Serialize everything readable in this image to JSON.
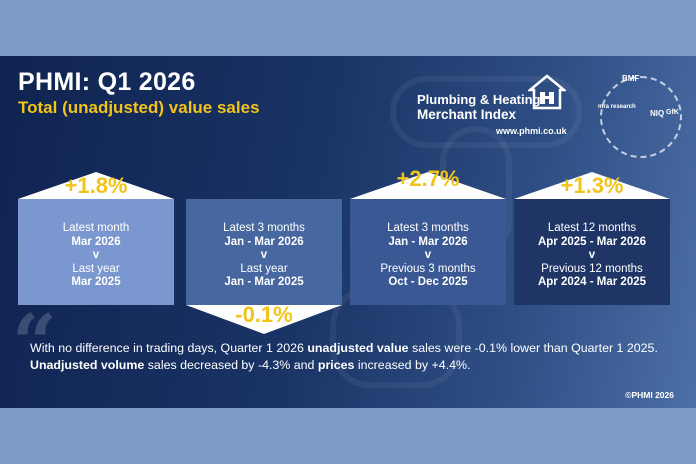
{
  "header": {
    "title": "PHMI: Q1 2026",
    "subtitle": "Total (unadjusted) value sales"
  },
  "brand": {
    "line1": "Plumbing & Heating",
    "line2": "Merchant Index",
    "url": "www.phmi.co.uk",
    "partner_logos": [
      "BMF",
      "mra research",
      "NIQ",
      "GfK"
    ]
  },
  "cards": [
    {
      "change": "+1.8%",
      "period_label": "Latest month",
      "period": "Mar 2026",
      "vs": "v",
      "compare_label": "Last year",
      "compare_period": "Mar 2025",
      "color": "#7b97cf"
    },
    {
      "change": "-0.1%",
      "period_label": "Latest 3 months",
      "period": "Jan - Mar 2026",
      "vs": "v",
      "compare_label": "Last year",
      "compare_period": "Jan - Mar 2025",
      "color": "#46679f"
    },
    {
      "change": "+2.7%",
      "period_label": "Latest 3 months",
      "period": "Jan - Mar 2026",
      "vs": "v",
      "compare_label": "Previous 3 months",
      "compare_period": "Oct - Dec 2025",
      "color": "#3a5893"
    },
    {
      "change": "+1.3%",
      "period_label": "Latest 12 months",
      "period": "Apr 2025 - Mar 2026",
      "vs": "v",
      "compare_label": "Previous 12 months",
      "compare_period": "Apr 2024 - Mar 2025",
      "color": "#1e3566"
    }
  ],
  "summary": {
    "part1": "With no difference in trading days, Quarter 1 2026 ",
    "bold1": "unadjusted value",
    "part2": " sales were -0.1% lower than Quarter 1 2025. ",
    "bold2": "Unadjusted volume",
    "part3": " sales decreased by -4.3% and ",
    "bold3": "prices",
    "part4": " increased by +4.4%."
  },
  "copyright": "©PHMI 2026",
  "colors": {
    "accent": "#f2c318",
    "background": "#7d9cc7",
    "panel": "#1a3466"
  }
}
